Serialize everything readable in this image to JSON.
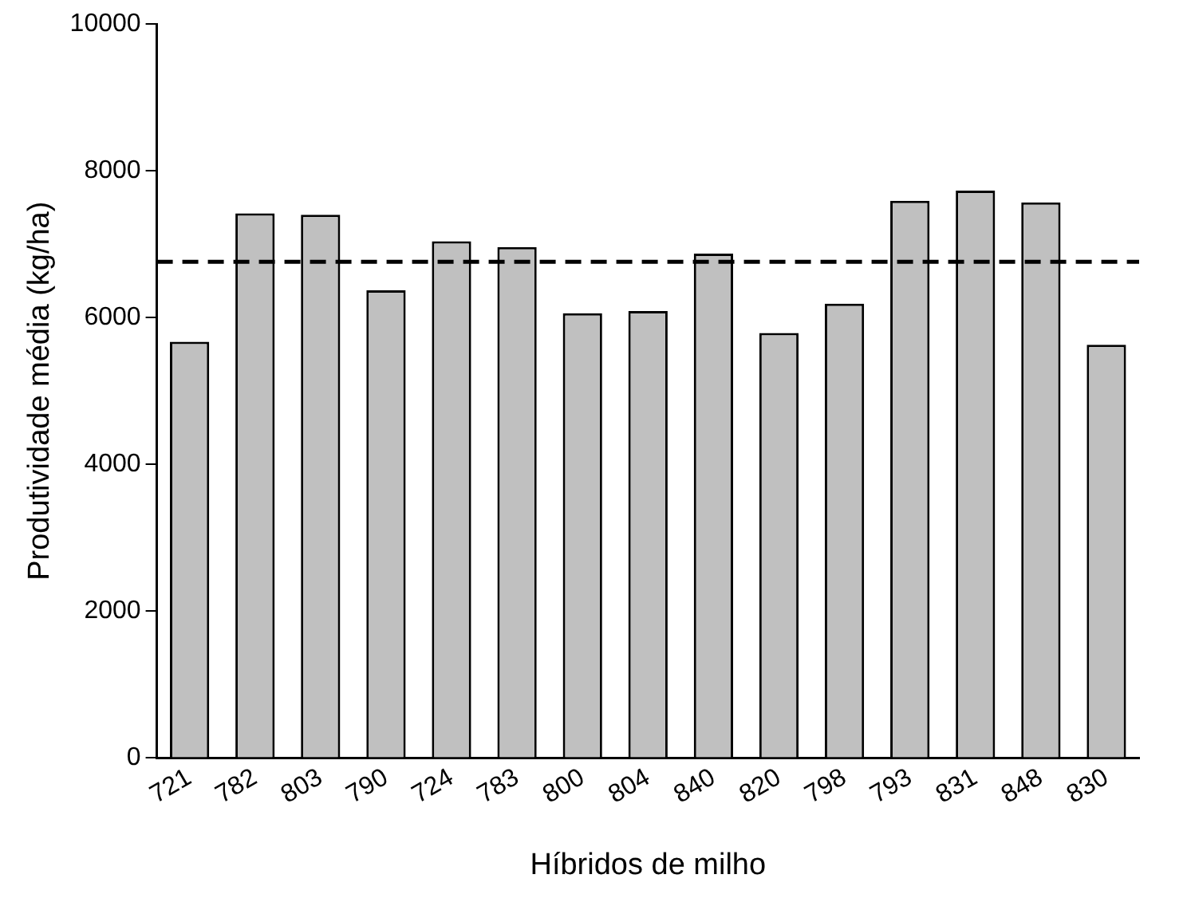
{
  "chart_data": {
    "type": "bar",
    "xlabel": "Híbridos de milho",
    "ylabel": "Produtividade média (kg/ha)",
    "categories": [
      "721",
      "782",
      "803",
      "790",
      "724",
      "783",
      "800",
      "804",
      "840",
      "820",
      "798",
      "793",
      "831",
      "848",
      "830"
    ],
    "values": [
      5670,
      7420,
      7400,
      6370,
      7040,
      6960,
      6060,
      6090,
      6870,
      5790,
      6190,
      7590,
      7730,
      7570,
      5630
    ],
    "color": "#c0c0c0",
    "ylim": [
      0,
      10000
    ],
    "yticks": [
      0,
      2000,
      4000,
      6000,
      8000,
      10000
    ],
    "grid": false,
    "legend": false,
    "ref_lines": [
      {
        "axis": "y",
        "value": 6760,
        "color": "#000000",
        "line_style": "dashed"
      }
    ]
  }
}
